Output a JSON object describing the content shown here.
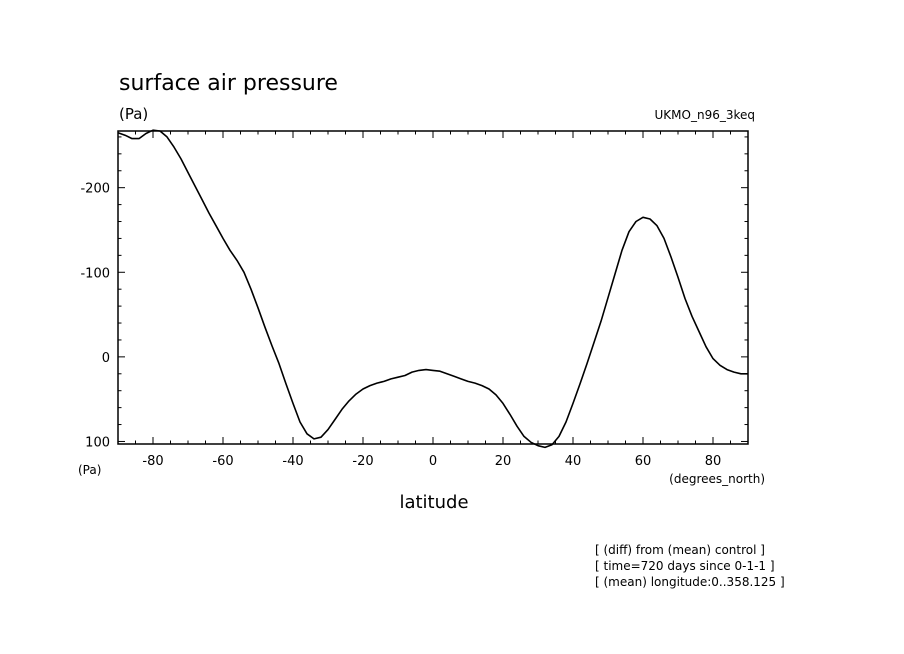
{
  "chart_data": {
    "type": "line",
    "title": "surface air pressure",
    "units_label": "(Pa)",
    "dataset_label": "UKMO_n96_3keq",
    "ylabel_units": "(Pa)",
    "xlabel": "latitude",
    "xlabel_units": "(degrees_north)",
    "xlim": [
      -90,
      90
    ],
    "ylim": [
      103,
      -267
    ],
    "y_inverted": true,
    "x_ticks": [
      -80,
      -60,
      -40,
      -20,
      0,
      20,
      40,
      60,
      80
    ],
    "x_tick_labels": [
      "-80",
      "-60",
      "-40",
      "-20",
      "0",
      "20",
      "40",
      "60",
      "80"
    ],
    "y_ticks": [
      -200,
      -100,
      0,
      100
    ],
    "y_tick_labels": [
      "-200",
      "-100",
      "0",
      "100"
    ],
    "grid": false,
    "series": [
      {
        "x": [
          -90,
          -88,
          -86,
          -84,
          -82,
          -80,
          -78,
          -76,
          -74,
          -72,
          -70,
          -68,
          -66,
          -64,
          -62,
          -60,
          -58,
          -56,
          -54,
          -52,
          -50,
          -48,
          -46,
          -44,
          -42,
          -40,
          -38,
          -36,
          -34,
          -32,
          -30,
          -28,
          -26,
          -24,
          -22,
          -20,
          -18,
          -16,
          -14,
          -12,
          -10,
          -8,
          -6,
          -4,
          -2,
          0,
          2,
          4,
          6,
          8,
          10,
          12,
          14,
          16,
          18,
          20,
          22,
          24,
          26,
          28,
          30,
          32,
          34,
          36,
          38,
          40,
          42,
          44,
          46,
          48,
          50,
          52,
          54,
          56,
          58,
          60,
          62,
          64,
          66,
          68,
          70,
          72,
          74,
          76,
          78,
          80,
          82,
          84,
          86,
          88,
          90
        ],
        "y": [
          -265,
          -262,
          -258,
          -258,
          -264,
          -268,
          -267,
          -260,
          -248,
          -234,
          -218,
          -202,
          -186,
          -170,
          -155,
          -140,
          -126,
          -114,
          -100,
          -80,
          -58,
          -35,
          -13,
          8,
          32,
          55,
          77,
          91,
          97,
          95,
          86,
          74,
          62,
          52,
          44,
          38,
          34,
          31,
          29,
          26,
          24,
          22,
          18,
          16,
          15,
          16,
          17,
          20,
          23,
          26,
          29,
          31,
          34,
          38,
          45,
          55,
          68,
          82,
          94,
          101,
          105,
          107,
          104,
          94,
          77,
          55,
          32,
          8,
          -17,
          -42,
          -70,
          -98,
          -126,
          -148,
          -160,
          -165,
          -163,
          -155,
          -140,
          -118,
          -94,
          -69,
          -48,
          -30,
          -12,
          2,
          10,
          15,
          18,
          20,
          20
        ]
      }
    ],
    "annotations": [
      "[ (diff) from (mean) control ]",
      "[ time=720 days since 0-1-1 ]",
      "[ (mean) longitude:0..358.125 ]"
    ]
  }
}
